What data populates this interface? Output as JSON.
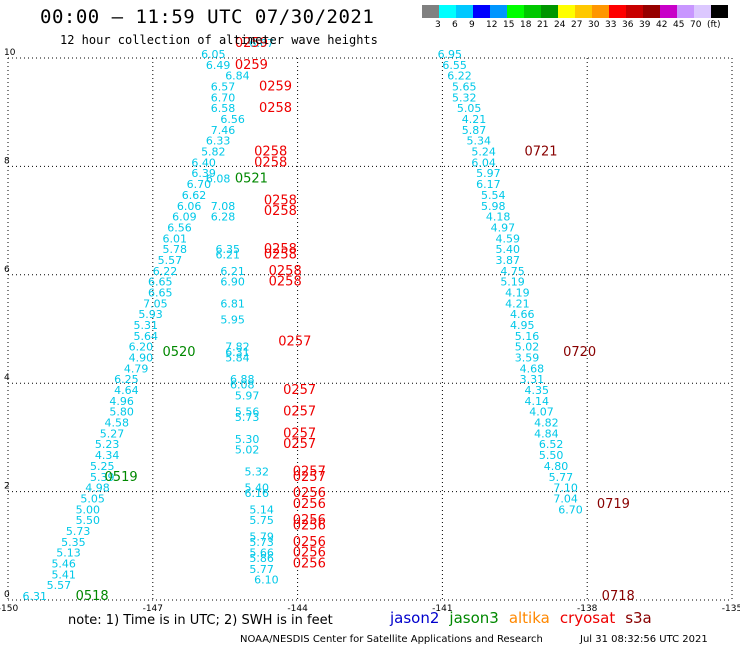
{
  "header": {
    "title": "00:00 — 11:59 UTC 07/30/2021",
    "subtitle": "12 hour collection of altimeter wave heights"
  },
  "legend": {
    "colors": [
      "#808080",
      "#00ffff",
      "#00c8ff",
      "#0000ff",
      "#0096ff",
      "#00ff00",
      "#00c800",
      "#009600",
      "#ffff00",
      "#ffc800",
      "#ff9600",
      "#ff0000",
      "#c80000",
      "#960000",
      "#c800c8",
      "#c896ff",
      "#dcc8ff",
      "#000000"
    ],
    "labels": [
      "3",
      "6",
      "9",
      "12",
      "15",
      "18",
      "21",
      "24",
      "27",
      "30",
      "33",
      "36",
      "39",
      "42",
      "45",
      "70",
      "(ft)"
    ]
  },
  "footer": {
    "note": "note:  1) Time is in UTC;  2) SWH is in feet",
    "satellites": [
      {
        "name": "jason2",
        "color": "#0000cc"
      },
      {
        "name": "jason3",
        "color": "#008800"
      },
      {
        "name": "altika",
        "color": "#ff8800"
      },
      {
        "name": "cryosat",
        "color": "#ee0000"
      },
      {
        "name": "s3a",
        "color": "#880000"
      }
    ],
    "credit": "NOAA/NESDIS Center for Satellite Applications and Research",
    "date": "Jul 31 08:32:56 UTC 2021"
  },
  "chart_data": {
    "type": "scatter",
    "xlim": [
      -150,
      -135
    ],
    "ylim": [
      0,
      10
    ],
    "xticks": [
      "-150",
      "-147",
      "-144",
      "-141",
      "-138",
      "-135"
    ],
    "yticks": [
      "0",
      "2",
      "4",
      "6",
      "8",
      "10"
    ],
    "grid": true,
    "series": [
      {
        "name": "swh",
        "color": "#00c8e8",
        "points": [
          [
            -149.7,
            0.0,
            "6.31"
          ],
          [
            -149.2,
            0.2,
            "5.57"
          ],
          [
            -149.1,
            0.4,
            "5.41"
          ],
          [
            -149.1,
            0.6,
            "5.46"
          ],
          [
            -149.0,
            0.8,
            "5.13"
          ],
          [
            -148.9,
            1.0,
            "5.35"
          ],
          [
            -148.8,
            1.2,
            "5.73"
          ],
          [
            -148.6,
            1.4,
            "5.50"
          ],
          [
            -148.6,
            1.6,
            "5.00"
          ],
          [
            -148.5,
            1.8,
            "5.05"
          ],
          [
            -148.4,
            2.0,
            "4.98"
          ],
          [
            -148.3,
            2.2,
            "5.39"
          ],
          [
            -148.3,
            2.4,
            "5.25"
          ],
          [
            -148.2,
            2.6,
            "4.34"
          ],
          [
            -148.2,
            2.8,
            "5.23"
          ],
          [
            -148.1,
            3.0,
            "5.27"
          ],
          [
            -148.0,
            3.2,
            "4.58"
          ],
          [
            -147.9,
            3.4,
            "5.80"
          ],
          [
            -147.9,
            3.6,
            "4.96"
          ],
          [
            -147.8,
            3.8,
            "4.64"
          ],
          [
            -147.8,
            4.0,
            "6.25"
          ],
          [
            -147.6,
            4.2,
            "4.79"
          ],
          [
            -147.5,
            4.4,
            "4.90"
          ],
          [
            -147.5,
            4.6,
            "6.20"
          ],
          [
            -147.4,
            4.8,
            "5.64"
          ],
          [
            -147.4,
            5.0,
            "5.31"
          ],
          [
            -147.3,
            5.2,
            "5.93"
          ],
          [
            -147.2,
            5.4,
            "7.05"
          ],
          [
            -147.1,
            5.6,
            "6.65"
          ],
          [
            -147.1,
            5.8,
            "6.65"
          ],
          [
            -147.0,
            6.0,
            "6.22"
          ],
          [
            -146.9,
            6.2,
            "5.57"
          ],
          [
            -146.8,
            6.4,
            "5.78"
          ],
          [
            -146.8,
            6.6,
            "6.01"
          ],
          [
            -146.7,
            6.8,
            "6.56"
          ],
          [
            -146.6,
            7.0,
            "6.09"
          ],
          [
            -146.5,
            7.2,
            "6.06"
          ],
          [
            -146.4,
            7.4,
            "6.62"
          ],
          [
            -146.3,
            7.6,
            "6.70"
          ],
          [
            -146.2,
            7.8,
            "6.39"
          ],
          [
            -146.2,
            8.0,
            "6.40"
          ],
          [
            -146.0,
            8.2,
            "5.82"
          ],
          [
            -145.9,
            8.4,
            "6.33"
          ],
          [
            -145.8,
            8.6,
            "7.46"
          ],
          [
            -145.6,
            8.8,
            "6.56"
          ],
          [
            -145.8,
            9.0,
            "6.58"
          ],
          [
            -145.8,
            9.2,
            "6.70"
          ],
          [
            -145.8,
            9.4,
            "6.57"
          ],
          [
            -145.5,
            9.6,
            "6.84"
          ],
          [
            -145.9,
            9.8,
            "6.49"
          ],
          [
            -146.0,
            10.0,
            "6.05"
          ],
          [
            -145.0,
            10.2,
            "6.67"
          ],
          [
            -145.9,
            7.7,
            "6.08"
          ],
          [
            -145.8,
            7.2,
            "7.08"
          ],
          [
            -145.8,
            7.0,
            "6.28"
          ],
          [
            -145.7,
            6.4,
            "6.35"
          ],
          [
            -145.7,
            6.3,
            "6.21"
          ],
          [
            -145.6,
            6.0,
            "6.21"
          ],
          [
            -145.6,
            5.8,
            "6.90"
          ],
          [
            -145.6,
            5.4,
            "6.81"
          ],
          [
            -145.6,
            5.1,
            "5.95"
          ],
          [
            -145.5,
            4.6,
            "7.82"
          ],
          [
            -145.5,
            4.5,
            "6.31"
          ],
          [
            -145.5,
            4.4,
            "5.84"
          ],
          [
            -145.4,
            4.0,
            "6.88"
          ],
          [
            -145.4,
            3.9,
            "6.08"
          ],
          [
            -145.3,
            3.7,
            "5.97"
          ],
          [
            -145.3,
            3.4,
            "5.56"
          ],
          [
            -145.3,
            3.3,
            "5.73"
          ],
          [
            -145.3,
            2.9,
            "5.30"
          ],
          [
            -145.3,
            2.7,
            "5.02"
          ],
          [
            -145.1,
            2.3,
            "5.32"
          ],
          [
            -145.1,
            2.0,
            "5.40"
          ],
          [
            -145.1,
            1.9,
            "6.16"
          ],
          [
            -145.0,
            1.6,
            "5.14"
          ],
          [
            -145.0,
            1.4,
            "5.75"
          ],
          [
            -145.0,
            1.1,
            "5.79"
          ],
          [
            -145.0,
            1.0,
            "5.73"
          ],
          [
            -145.0,
            0.8,
            "5.66"
          ],
          [
            -145.0,
            0.7,
            "5.86"
          ],
          [
            -145.0,
            0.5,
            "5.77"
          ],
          [
            -144.9,
            0.3,
            "6.10"
          ],
          [
            -141.1,
            10.0,
            "6.95"
          ],
          [
            -141.0,
            9.8,
            "6.55"
          ],
          [
            -140.9,
            9.6,
            "6.22"
          ],
          [
            -140.8,
            9.4,
            "5.65"
          ],
          [
            -140.8,
            9.2,
            "5.32"
          ],
          [
            -140.7,
            9.0,
            "5.05"
          ],
          [
            -140.6,
            8.8,
            "4.21"
          ],
          [
            -140.6,
            8.6,
            "5.87"
          ],
          [
            -140.5,
            8.4,
            "5.34"
          ],
          [
            -140.4,
            8.2,
            "5.24"
          ],
          [
            -140.4,
            8.0,
            "6.04"
          ],
          [
            -140.3,
            7.8,
            "5.97"
          ],
          [
            -140.3,
            7.6,
            "6.17"
          ],
          [
            -140.2,
            7.4,
            "5.54"
          ],
          [
            -140.2,
            7.2,
            "5.98"
          ],
          [
            -140.1,
            7.0,
            "4.18"
          ],
          [
            -140.0,
            6.8,
            "4.97"
          ],
          [
            -139.9,
            6.6,
            "4.59"
          ],
          [
            -139.9,
            6.4,
            "5.40"
          ],
          [
            -139.9,
            6.2,
            "3.87"
          ],
          [
            -139.8,
            6.0,
            "4.75"
          ],
          [
            -139.8,
            5.8,
            "5.19"
          ],
          [
            -139.7,
            5.6,
            "4.19"
          ],
          [
            -139.7,
            5.4,
            "4.21"
          ],
          [
            -139.6,
            5.2,
            "4.66"
          ],
          [
            -139.6,
            5.0,
            "4.95"
          ],
          [
            -139.5,
            4.8,
            "5.16"
          ],
          [
            -139.5,
            4.6,
            "5.02"
          ],
          [
            -139.5,
            4.4,
            "3.59"
          ],
          [
            -139.4,
            4.2,
            "4.68"
          ],
          [
            -139.4,
            4.0,
            "3.31"
          ],
          [
            -139.3,
            3.8,
            "4.35"
          ],
          [
            -139.3,
            3.6,
            "4.14"
          ],
          [
            -139.2,
            3.4,
            "4.07"
          ],
          [
            -139.1,
            3.2,
            "4.82"
          ],
          [
            -139.1,
            3.0,
            "4.84"
          ],
          [
            -139.0,
            2.8,
            "6.52"
          ],
          [
            -139.0,
            2.6,
            "5.50"
          ],
          [
            -138.9,
            2.4,
            "4.80"
          ],
          [
            -138.8,
            2.2,
            "5.77"
          ],
          [
            -138.7,
            2.0,
            "7.10"
          ],
          [
            -138.7,
            1.8,
            "7.04"
          ],
          [
            -138.6,
            1.6,
            "6.70"
          ]
        ]
      },
      {
        "name": "time-labels",
        "points": [
          [
            -148.6,
            0.0,
            "0518",
            "#008800"
          ],
          [
            -148.0,
            2.2,
            "0519",
            "#008800"
          ],
          [
            -146.8,
            4.5,
            "0520",
            "#008800"
          ],
          [
            -145.3,
            7.7,
            "0521",
            "#008800"
          ],
          [
            -145.3,
            10.2,
            "0259",
            "#ee0000"
          ],
          [
            -145.3,
            9.8,
            "0259",
            "#ee0000"
          ],
          [
            -144.8,
            9.4,
            "0259",
            "#ee0000"
          ],
          [
            -144.8,
            9.0,
            "0258",
            "#ee0000"
          ],
          [
            -144.9,
            8.2,
            "0258",
            "#ee0000"
          ],
          [
            -144.9,
            8.0,
            "0258",
            "#ee0000"
          ],
          [
            -144.7,
            7.3,
            "0258",
            "#ee0000"
          ],
          [
            -144.7,
            7.1,
            "0258",
            "#ee0000"
          ],
          [
            -144.7,
            6.4,
            "0258",
            "#ee0000"
          ],
          [
            -144.7,
            6.3,
            "0258",
            "#ee0000"
          ],
          [
            -144.6,
            6.0,
            "0258",
            "#ee0000"
          ],
          [
            -144.6,
            5.8,
            "0258",
            "#ee0000"
          ],
          [
            -144.4,
            4.7,
            "0257",
            "#ee0000"
          ],
          [
            -144.3,
            3.8,
            "0257",
            "#ee0000"
          ],
          [
            -144.3,
            3.4,
            "0257",
            "#ee0000"
          ],
          [
            -144.3,
            3.0,
            "0257",
            "#ee0000"
          ],
          [
            -144.3,
            2.8,
            "0257",
            "#ee0000"
          ],
          [
            -144.1,
            2.3,
            "0257",
            "#ee0000"
          ],
          [
            -144.1,
            2.2,
            "0257",
            "#ee0000"
          ],
          [
            -144.1,
            1.9,
            "0256",
            "#ee0000"
          ],
          [
            -144.1,
            1.7,
            "0256",
            "#ee0000"
          ],
          [
            -144.1,
            1.4,
            "0256",
            "#ee0000"
          ],
          [
            -144.1,
            1.3,
            "0256",
            "#ee0000"
          ],
          [
            -144.1,
            1.0,
            "0256",
            "#ee0000"
          ],
          [
            -144.1,
            0.8,
            "0256",
            "#ee0000"
          ],
          [
            -144.1,
            0.6,
            "0256",
            "#ee0000"
          ],
          [
            -139.3,
            8.2,
            "0721",
            "#880000"
          ],
          [
            -138.5,
            4.5,
            "0720",
            "#880000"
          ],
          [
            -137.8,
            1.7,
            "0719",
            "#880000"
          ],
          [
            -137.7,
            0.0,
            "0718",
            "#880000"
          ]
        ]
      }
    ]
  }
}
